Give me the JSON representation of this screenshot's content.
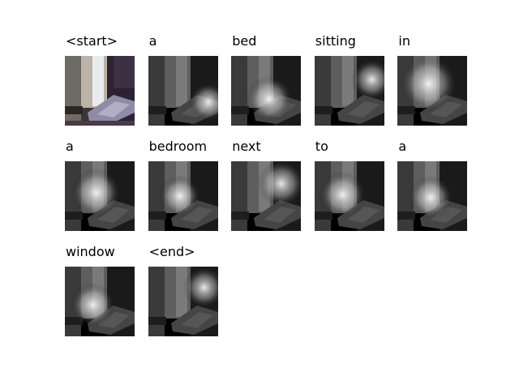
{
  "figure": {
    "columns": 5,
    "tokens": [
      {
        "word": "<start>",
        "is_original": true,
        "focus": [
          0.5,
          0.5
        ],
        "spread": 0.6
      },
      {
        "word": "a",
        "is_original": false,
        "focus": [
          0.86,
          0.66
        ],
        "spread": 0.28
      },
      {
        "word": "bed",
        "is_original": false,
        "focus": [
          0.55,
          0.62
        ],
        "spread": 0.34
      },
      {
        "word": "sitting",
        "is_original": false,
        "focus": [
          0.82,
          0.34
        ],
        "spread": 0.3
      },
      {
        "word": "in",
        "is_original": false,
        "focus": [
          0.45,
          0.4
        ],
        "spread": 0.42
      },
      {
        "word": "a",
        "is_original": false,
        "focus": [
          0.45,
          0.45
        ],
        "spread": 0.36
      },
      {
        "word": "bedroom",
        "is_original": false,
        "focus": [
          0.45,
          0.5
        ],
        "spread": 0.3
      },
      {
        "word": "next",
        "is_original": false,
        "focus": [
          0.72,
          0.32
        ],
        "spread": 0.34
      },
      {
        "word": "to",
        "is_original": false,
        "focus": [
          0.4,
          0.48
        ],
        "spread": 0.34
      },
      {
        "word": "a",
        "is_original": false,
        "focus": [
          0.48,
          0.52
        ],
        "spread": 0.32
      },
      {
        "word": "window",
        "is_original": false,
        "focus": [
          0.4,
          0.55
        ],
        "spread": 0.32
      },
      {
        "word": "<end>",
        "is_original": false,
        "focus": [
          0.8,
          0.3
        ],
        "spread": 0.3
      }
    ]
  }
}
